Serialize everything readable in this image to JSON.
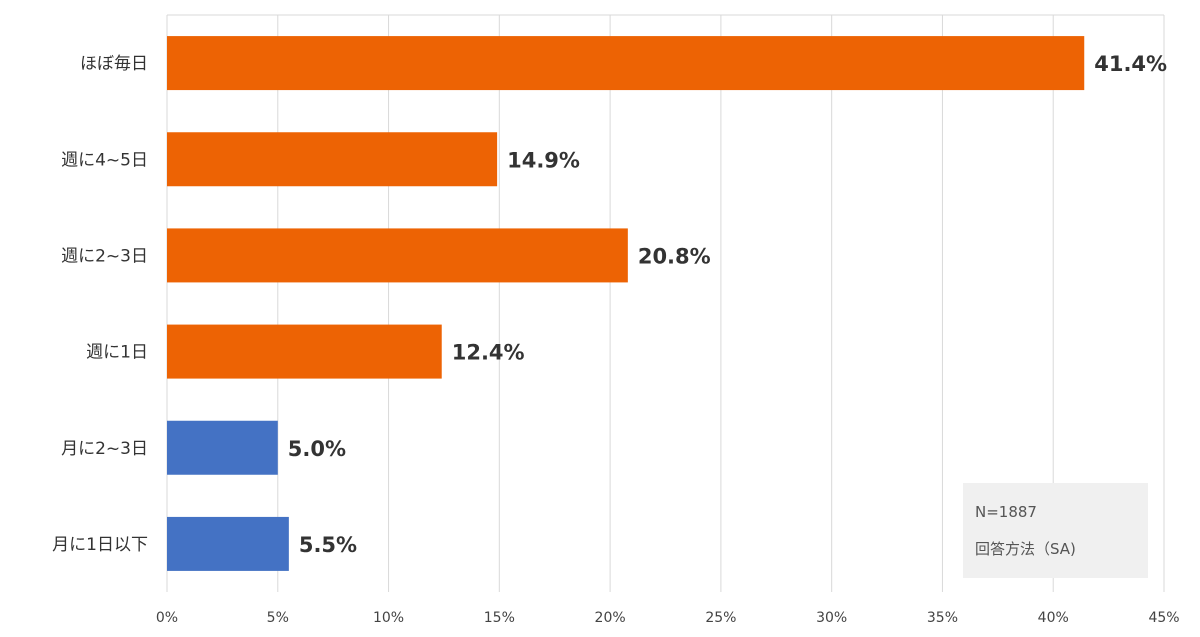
{
  "chart_data": {
    "type": "bar",
    "orientation": "horizontal",
    "categories": [
      "ほぼ毎日",
      "週に4~5日",
      "週に2~3日",
      "週に1日",
      "月に2~3日",
      "月に1日以下"
    ],
    "values": [
      41.4,
      14.9,
      20.8,
      12.4,
      5.0,
      5.5
    ],
    "value_labels": [
      "41.4%",
      "14.9%",
      "20.8%",
      "12.4%",
      "5.0%",
      "5.5%"
    ],
    "bar_colors": [
      "#ED6304",
      "#ED6304",
      "#ED6304",
      "#ED6304",
      "#4472C4",
      "#4472C4"
    ],
    "xlim": [
      0,
      45
    ],
    "x_ticks": [
      0,
      5,
      10,
      15,
      20,
      25,
      30,
      35,
      40,
      45
    ],
    "x_tick_labels": [
      "0%",
      "5%",
      "10%",
      "15%",
      "20%",
      "25%",
      "30%",
      "35%",
      "40%",
      "45%"
    ],
    "grid": true,
    "legend": "none",
    "title": "",
    "xlabel": "",
    "ylabel": "",
    "note": {
      "line1": "N=1887",
      "line2": "回答方法（SA)"
    },
    "colors": {
      "primary": "#ED6304",
      "secondary": "#4472C4",
      "grid": "#D9D9D9",
      "note_bg": "#F0F0F0"
    }
  }
}
